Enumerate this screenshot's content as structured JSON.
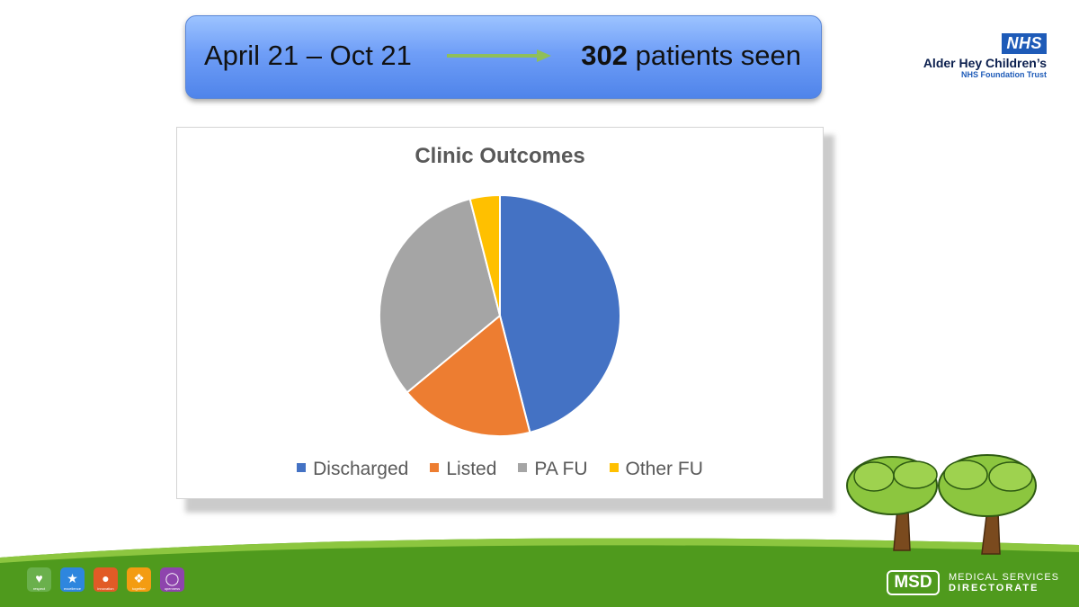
{
  "banner": {
    "period": "April 21 – Oct 21",
    "count": "302",
    "count_suffix": " patients seen"
  },
  "nhs": {
    "logo_text": "NHS",
    "org_name": "Alder Hey Children’s",
    "trust": "NHS Foundation Trust"
  },
  "chart_data": {
    "type": "pie",
    "title": "Clinic Outcomes",
    "categories": [
      "Discharged",
      "Listed",
      "PA FU",
      "Other FU"
    ],
    "values": [
      46,
      18,
      32,
      4
    ],
    "colors": [
      "#4472c4",
      "#ed7d31",
      "#a5a5a5",
      "#ffc000"
    ],
    "legend_position": "bottom"
  },
  "footer": {
    "values": [
      {
        "label": "respect",
        "color": "#6ab04c",
        "icon": "handshake-icon"
      },
      {
        "label": "excellence",
        "color": "#2e86de",
        "icon": "star-icon"
      },
      {
        "label": "innovation",
        "color": "#e15b26",
        "icon": "lightbulb-icon"
      },
      {
        "label": "together",
        "color": "#f39c12",
        "icon": "puzzle-icon"
      },
      {
        "label": "openness",
        "color": "#8e44ad",
        "icon": "speech-bubble-icon"
      }
    ],
    "msd_logo": "MSD",
    "msd_line1": "MEDICAL SERVICES",
    "msd_line2": "DIRECTORATE"
  }
}
